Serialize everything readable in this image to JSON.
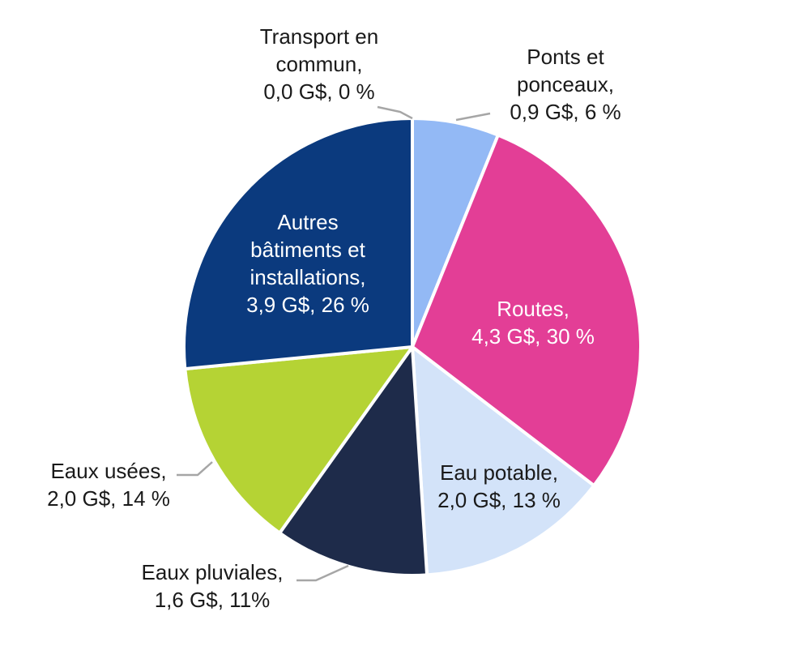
{
  "chart_data": {
    "type": "pie",
    "title": "",
    "start_angle_deg": 0,
    "direction": "clockwise",
    "label_color_outside": "#1a1a1a",
    "leader_color": "#a6a6a6",
    "slices": [
      {
        "name": "Transport en commun",
        "value": 0.0,
        "percent": 0,
        "color": "#2f5597",
        "label_lines": [
          "Transport en",
          "commun,",
          "0,0 G$, 0 %"
        ],
        "label_color": "#1a1a1a"
      },
      {
        "name": "Ponts et ponceaux",
        "value": 0.9,
        "percent": 6,
        "color": "#93b9f5",
        "label_lines": [
          "Ponts et",
          "ponceaux,",
          "0,9 G$, 6 %"
        ],
        "label_color": "#1a1a1a"
      },
      {
        "name": "Routes",
        "value": 4.3,
        "percent": 30,
        "color": "#e33e96",
        "label_lines": [
          "Routes,",
          "4,3 G$, 30 %"
        ],
        "label_color": "#ffffff"
      },
      {
        "name": "Eau potable",
        "value": 2.0,
        "percent": 13,
        "color": "#d3e3f9",
        "label_lines": [
          "Eau potable,",
          "2,0 G$, 13 %"
        ],
        "label_color": "#1a1a1a"
      },
      {
        "name": "Eaux pluviales",
        "value": 1.6,
        "percent": 11,
        "color": "#1e2b4a",
        "label_lines": [
          "Eaux pluviales,",
          "1,6 G$, 11%"
        ],
        "label_color": "#1a1a1a"
      },
      {
        "name": "Eaux usées",
        "value": 2.0,
        "percent": 14,
        "color": "#b5d334",
        "label_lines": [
          "Eaux usées,",
          "2,0 G$, 14 %"
        ],
        "label_color": "#1a1a1a"
      },
      {
        "name": "Autres bâtiments et installations",
        "value": 3.9,
        "percent": 26,
        "color": "#0b3a7e",
        "label_lines": [
          "Autres",
          "bâtiments et",
          "installations,",
          "3,9 G$, 26 %"
        ],
        "label_color": "#ffffff"
      }
    ]
  }
}
